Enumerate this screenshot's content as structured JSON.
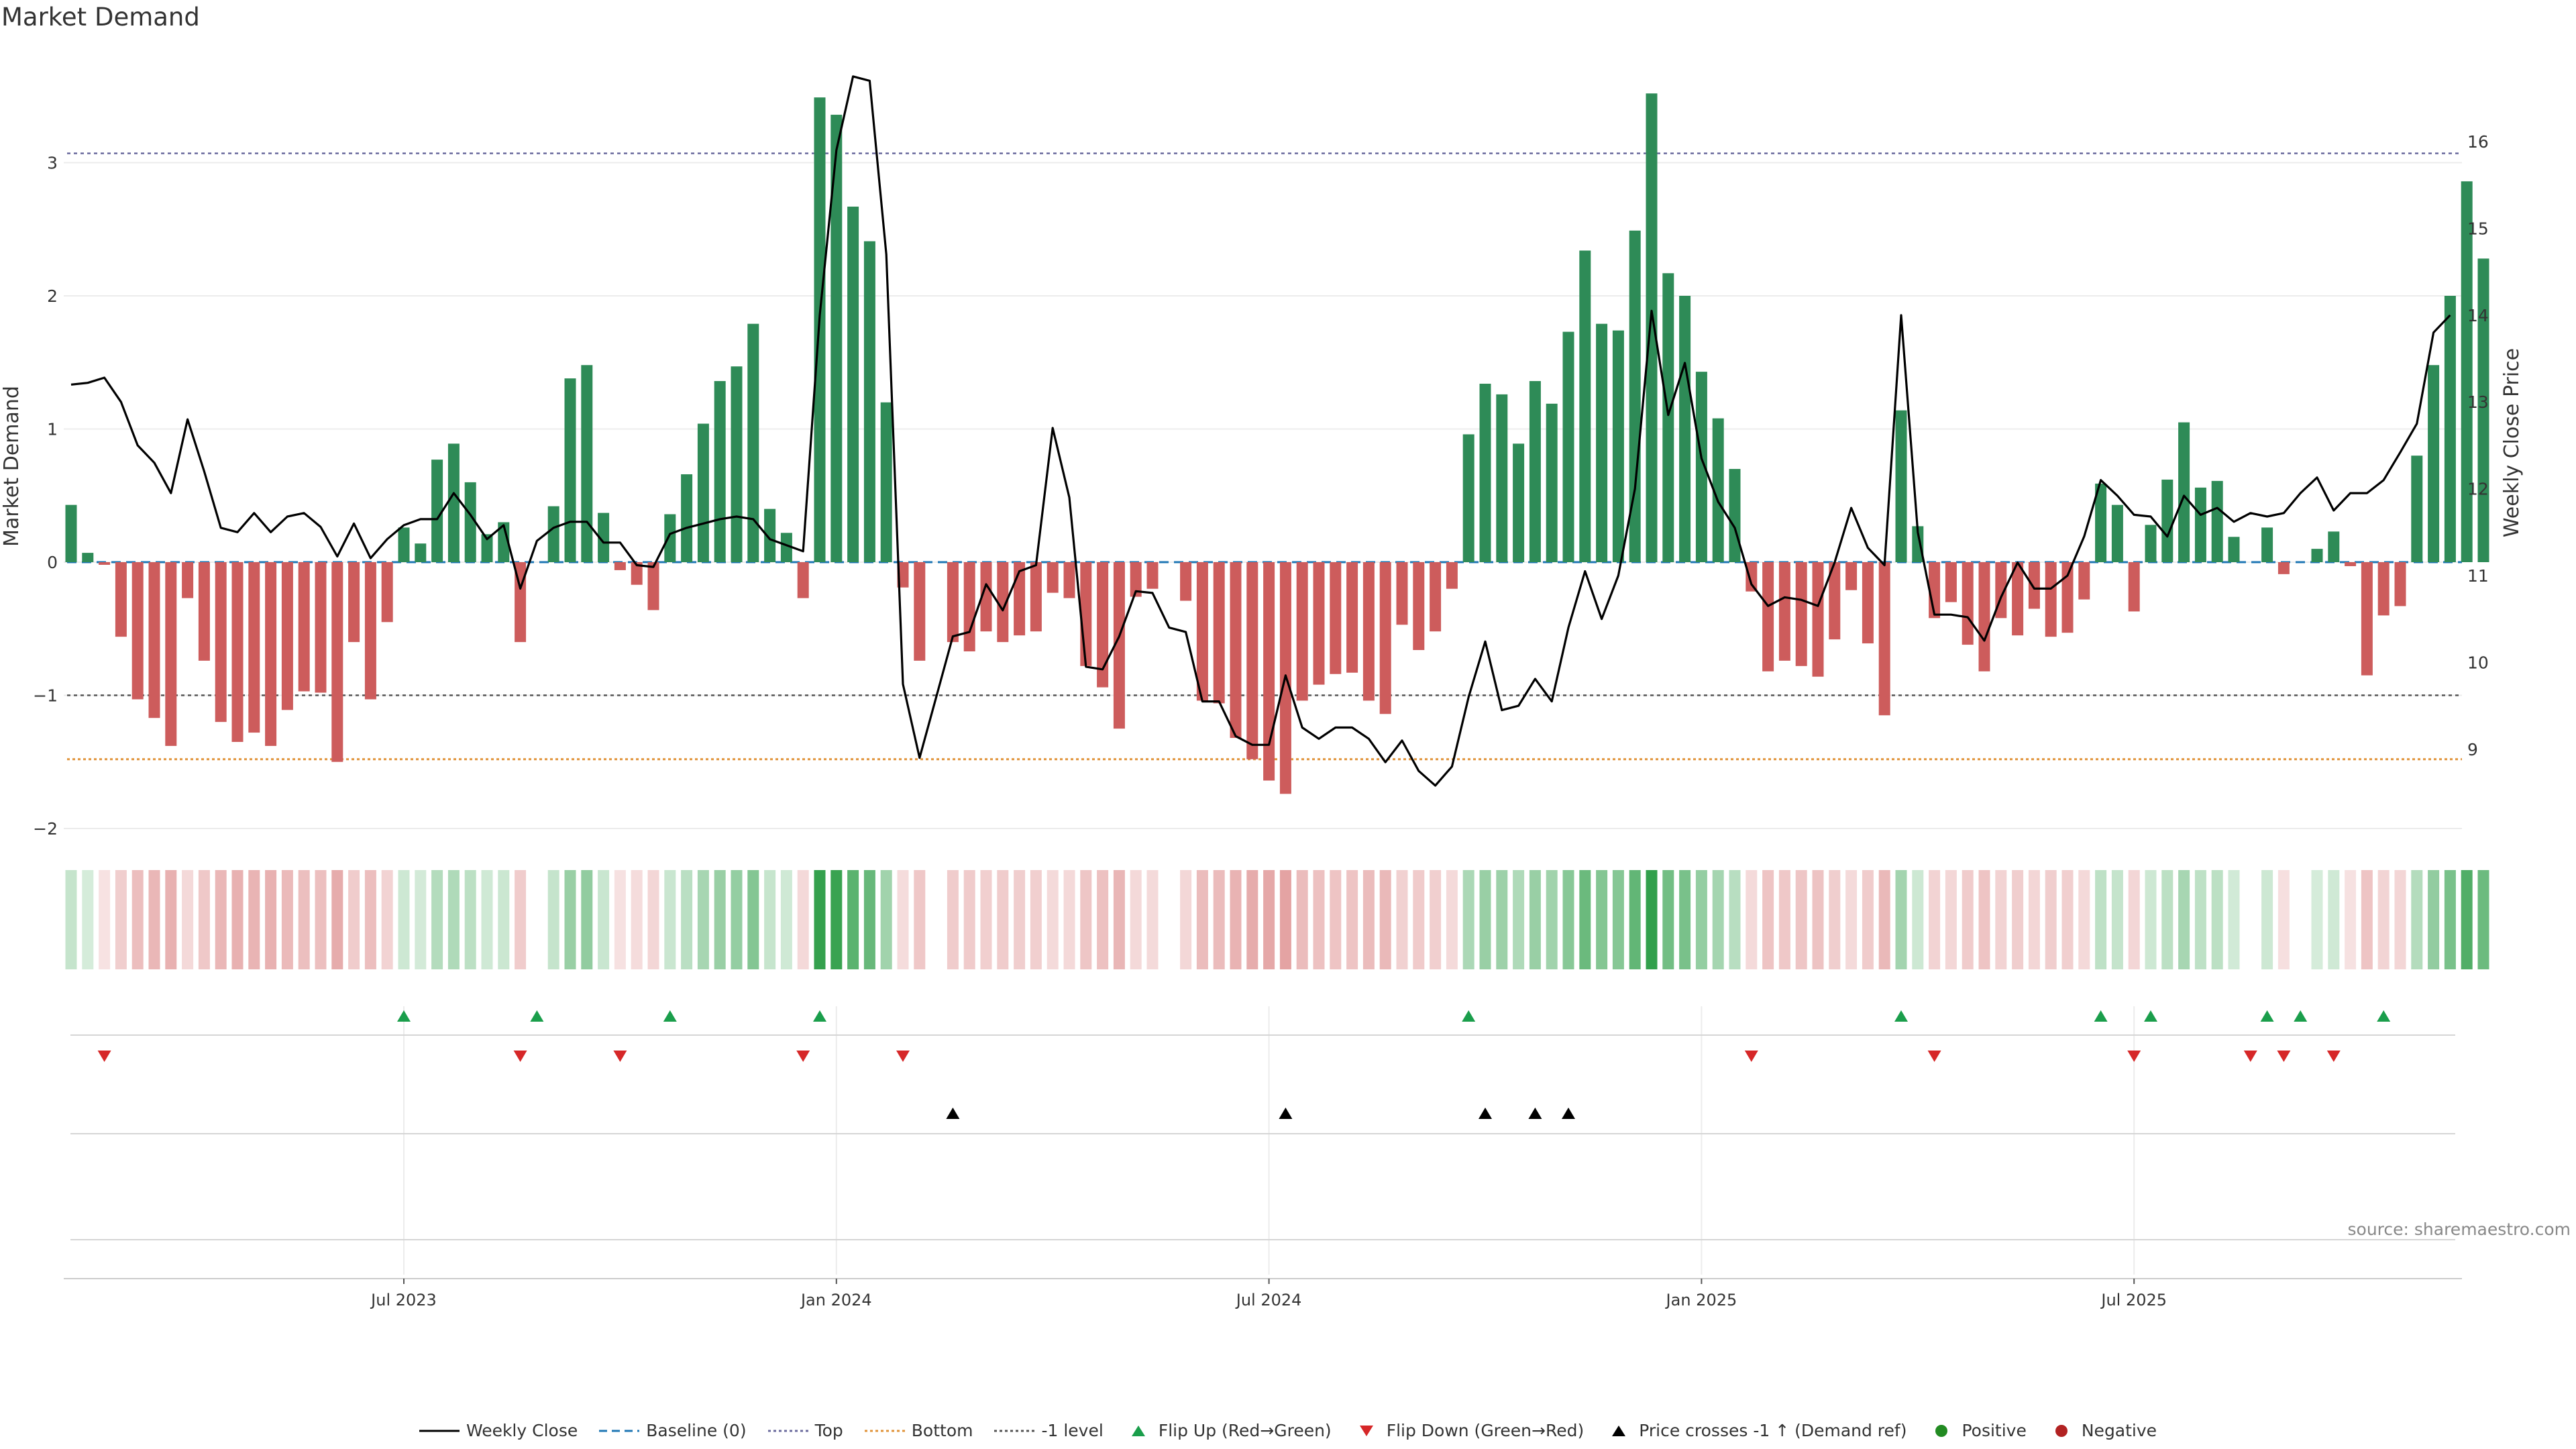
{
  "title": "Market Demand",
  "source": "source: sharemaestro.com",
  "chart_data": {
    "type": "bar",
    "left_axis": {
      "label": "Market Demand",
      "ylim": [
        -2.2,
        3.6
      ],
      "ticks": [
        -2,
        -1,
        0,
        1,
        2,
        3
      ],
      "tick_labels": [
        "−2",
        "−1",
        "0",
        "1",
        "2",
        "3"
      ]
    },
    "right_axis": {
      "label": "Weekly Close Price",
      "ylim": [
        7.2,
        16.8
      ],
      "ticks": [
        9,
        10,
        11,
        12,
        13,
        14,
        15,
        16
      ],
      "tick_labels": [
        "9",
        "10",
        "11",
        "12",
        "13",
        "14",
        "15",
        "16"
      ]
    },
    "x_ticks": [
      {
        "label": "Jul 2023",
        "week": 20
      },
      {
        "label": "Jan 2024",
        "week": 46
      },
      {
        "label": "Jul 2024",
        "week": 72
      },
      {
        "label": "Jan 2025",
        "week": 98
      },
      {
        "label": "Jul 2025",
        "week": 124
      }
    ],
    "levels": {
      "top": 3.07,
      "bottom": -1.48,
      "minus_one": -1.0,
      "baseline": 0
    },
    "demand": [
      0.43,
      0.07,
      -0.02,
      -0.56,
      -1.03,
      -1.17,
      -1.38,
      -0.27,
      -0.74,
      -1.2,
      -1.35,
      -1.28,
      -1.38,
      -1.11,
      -0.97,
      -0.98,
      -1.5,
      -0.6,
      -1.03,
      -0.45,
      0.26,
      0.14,
      0.77,
      0.89,
      0.6,
      0.21,
      0.3,
      -0.6,
      0.0,
      0.42,
      1.38,
      1.48,
      0.37,
      -0.06,
      -0.17,
      -0.36,
      0.36,
      0.66,
      1.04,
      1.36,
      1.47,
      1.79,
      0.4,
      0.22,
      -0.27,
      3.49,
      3.36,
      2.67,
      2.41,
      1.2,
      -0.19,
      -0.74,
      0.0,
      -0.6,
      -0.67,
      -0.52,
      -0.6,
      -0.55,
      -0.52,
      -0.23,
      -0.27,
      -0.78,
      -0.94,
      -1.25,
      -0.26,
      -0.2,
      0.0,
      -0.29,
      -1.04,
      -1.06,
      -1.32,
      -1.48,
      -1.64,
      -1.74,
      -1.04,
      -0.92,
      -0.84,
      -0.83,
      -1.04,
      -1.14,
      -0.47,
      -0.66,
      -0.52,
      -0.2,
      0.96,
      1.34,
      1.26,
      0.89,
      1.36,
      1.19,
      1.73,
      2.34,
      1.79,
      1.74,
      2.49,
      3.52,
      2.17,
      2.0,
      1.43,
      1.08,
      0.7,
      -0.22,
      -0.82,
      -0.74,
      -0.78,
      -0.86,
      -0.58,
      -0.21,
      -0.61,
      -1.15,
      1.14,
      0.27,
      -0.42,
      -0.3,
      -0.62,
      -0.82,
      -0.42,
      -0.55,
      -0.35,
      -0.56,
      -0.53,
      -0.28,
      0.59,
      0.43,
      -0.37,
      0.28,
      0.62,
      1.05,
      0.56,
      0.61,
      0.19,
      0.0,
      0.26,
      -0.09,
      0.0,
      0.1,
      0.23,
      -0.03,
      -0.85,
      -0.4,
      -0.33,
      0.8,
      1.48,
      2.0,
      2.86,
      2.28
    ],
    "weekly_close": [
      13.2,
      13.22,
      13.28,
      13.0,
      12.5,
      12.3,
      11.95,
      12.8,
      12.2,
      11.55,
      11.5,
      11.72,
      11.5,
      11.68,
      11.72,
      11.56,
      11.22,
      11.6,
      11.2,
      11.42,
      11.58,
      11.65,
      11.65,
      11.95,
      11.7,
      11.42,
      11.58,
      10.85,
      11.4,
      11.55,
      11.62,
      11.62,
      11.38,
      11.38,
      11.12,
      11.1,
      11.48,
      11.55,
      11.6,
      11.65,
      11.68,
      11.65,
      11.42,
      11.35,
      11.28,
      14.0,
      15.9,
      16.75,
      16.7,
      14.7,
      9.75,
      8.9,
      9.6,
      10.3,
      10.35,
      10.9,
      10.6,
      11.05,
      11.12,
      12.7,
      11.9,
      9.95,
      9.92,
      10.3,
      10.82,
      10.8,
      10.4,
      10.35,
      9.55,
      9.55,
      9.15,
      9.05,
      9.05,
      9.85,
      9.25,
      9.12,
      9.25,
      9.25,
      9.12,
      8.85,
      9.1,
      8.75,
      8.58,
      8.8,
      9.6,
      10.24,
      9.45,
      9.5,
      9.81,
      9.55,
      10.4,
      11.05,
      10.5,
      11.0,
      12.0,
      14.05,
      12.85,
      13.45,
      12.35,
      11.85,
      11.55,
      10.9,
      10.65,
      10.75,
      10.72,
      10.65,
      11.15,
      11.78,
      11.32,
      11.12,
      14.0,
      11.5,
      10.55,
      10.55,
      10.52,
      10.25,
      10.75,
      11.15,
      10.85,
      10.85,
      11.0,
      11.45,
      12.1,
      11.92,
      11.7,
      11.68,
      11.45,
      11.92,
      11.7,
      11.78,
      11.62,
      11.72,
      11.68,
      11.72,
      11.95,
      12.13,
      11.75,
      11.95,
      11.95,
      12.1,
      12.42,
      12.75,
      13.8,
      14.0
    ]
  },
  "flip_up_weeks": [
    20,
    28,
    36,
    45,
    84,
    110,
    122,
    125,
    132,
    134,
    139
  ],
  "flip_down_weeks": [
    2,
    27,
    33,
    44,
    50,
    101,
    112,
    124,
    131,
    133,
    136
  ],
  "price_cross_weeks": [
    53,
    73,
    85,
    88,
    90
  ],
  "legend": [
    {
      "label": "Weekly Close",
      "kind": "line",
      "color": "#000000"
    },
    {
      "label": "Baseline (0)",
      "kind": "dash",
      "color": "#1f77b4"
    },
    {
      "label": "Top",
      "kind": "dot",
      "color": "#6b6b9e"
    },
    {
      "label": "Bottom",
      "kind": "dot",
      "color": "#e0933a"
    },
    {
      "label": "-1 level",
      "kind": "dot",
      "color": "#555555"
    },
    {
      "label": "Flip Up (Red→Green)",
      "kind": "tri-up",
      "color": "#1a9e4b"
    },
    {
      "label": "Flip Down (Green→Red)",
      "kind": "tri-down",
      "color": "#d62728"
    },
    {
      "label": "Price crosses -1 ↑ (Demand ref)",
      "kind": "tri-up",
      "color": "#000000"
    },
    {
      "label": "Positive",
      "kind": "circle",
      "color": "#228b22"
    },
    {
      "label": "Negative",
      "kind": "circle",
      "color": "#b22222"
    }
  ],
  "colors": {
    "positive_bar": "#2e8b57",
    "negative_bar": "#cd5c5c",
    "strip_pos": "#2e9e48",
    "strip_neg": "#d06060"
  }
}
